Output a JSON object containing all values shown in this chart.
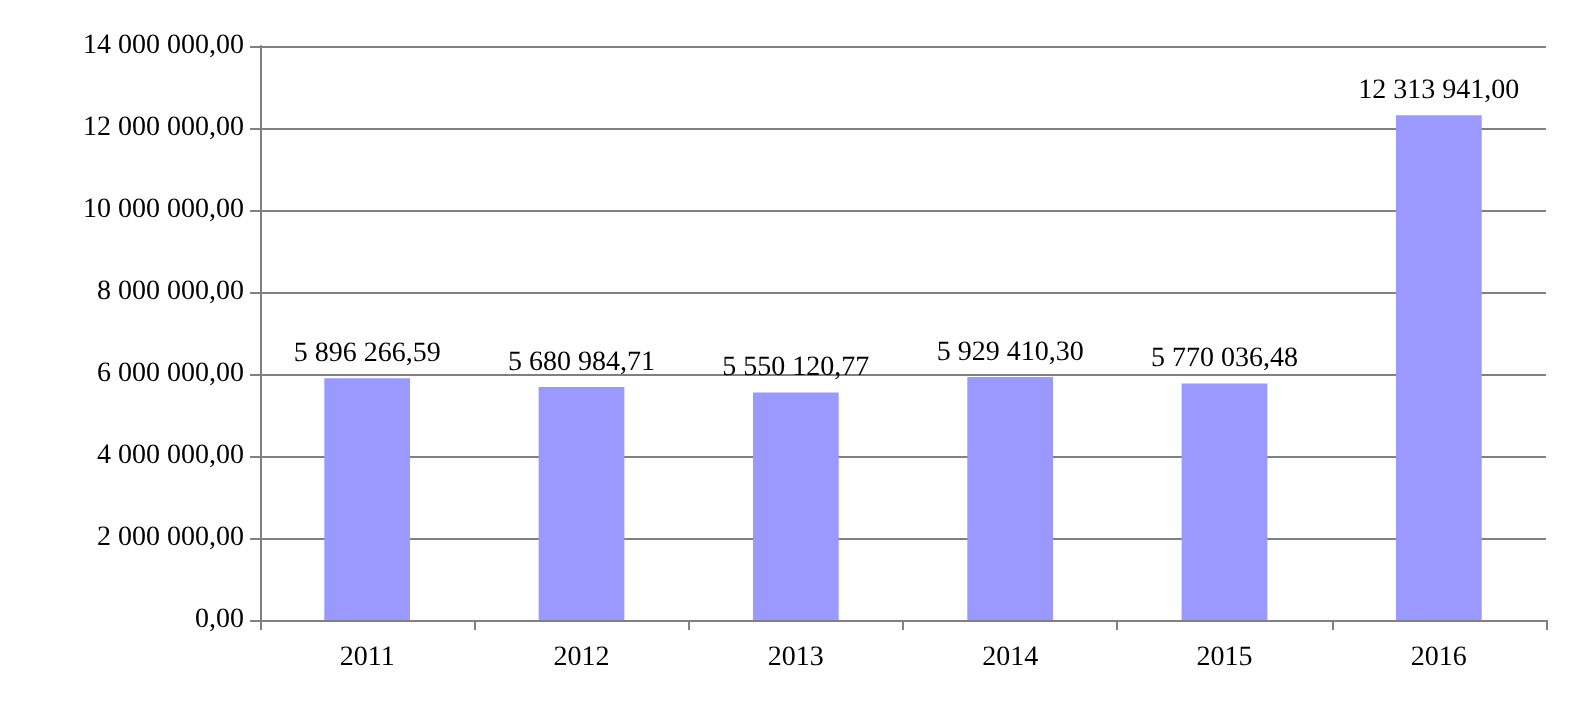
{
  "chart_data": {
    "type": "bar",
    "categories": [
      "2011",
      "2012",
      "2013",
      "2014",
      "2015",
      "2016"
    ],
    "values": [
      5896266.59,
      5680984.71,
      5550120.77,
      5929410.3,
      5770036.48,
      12313941.0
    ],
    "value_labels": [
      "5 896 266,59",
      "5 680 984,71",
      "5 550 120,77",
      "5 929 410,30",
      "5 770 036,48",
      "12 313 941,00"
    ],
    "color": "#9999ff",
    "ylim": [
      0,
      14000000
    ],
    "yticks": [
      {
        "value": 0,
        "label": "0,00"
      },
      {
        "value": 2000000,
        "label": "2 000 000,00"
      },
      {
        "value": 4000000,
        "label": "4 000 000,00"
      },
      {
        "value": 6000000,
        "label": "6 000 000,00"
      },
      {
        "value": 8000000,
        "label": "8 000 000,00"
      },
      {
        "value": 10000000,
        "label": "10 000 000,00"
      },
      {
        "value": 12000000,
        "label": "12 000 000,00"
      },
      {
        "value": 14000000,
        "label": "14 000 000,00"
      }
    ],
    "grid": "y"
  }
}
